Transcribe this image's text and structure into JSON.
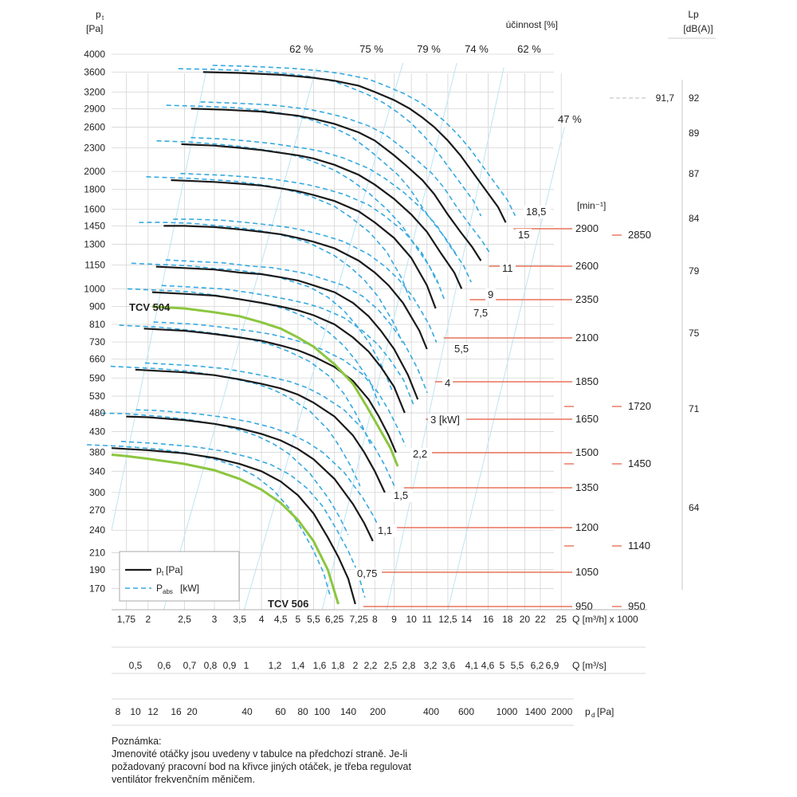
{
  "chart_data": {
    "type": "line",
    "y_axis": {
      "label": "p",
      "label_sub": "t",
      "unit": "[Pa]",
      "ticks": [
        4000,
        3600,
        3200,
        2900,
        2600,
        2300,
        2000,
        1800,
        1600,
        1450,
        1300,
        1150,
        1000,
        900,
        810,
        730,
        660,
        590,
        530,
        480,
        430,
        380,
        340,
        300,
        270,
        240,
        210,
        190,
        170
      ],
      "tick_labels": [
        "4000",
        "3600",
        "3200",
        "2900",
        "2600",
        "2300",
        "2000",
        "1800",
        "1600",
        "1450",
        "1300",
        "1150",
        "1000",
        "900",
        "810",
        "730",
        "660",
        "590",
        "530",
        "480",
        "430",
        "380",
        "340",
        "300",
        "270",
        "240",
        "210",
        "190",
        "170"
      ],
      "range": [
        150,
        4000
      ],
      "scale": "log"
    },
    "x_axis": {
      "label": "Q [m³/h] x 1000",
      "ticks": [
        1.75,
        2,
        2.5,
        3,
        3.5,
        4,
        4.5,
        5,
        5.5,
        6.25,
        7.25,
        8,
        9,
        10,
        11,
        12.5,
        14,
        16,
        18,
        20,
        22,
        25
      ],
      "tick_labels": [
        "1,75",
        "2",
        "2,5",
        "3",
        "3,5",
        "4",
        "4,5",
        "5",
        "5,5",
        "6,25",
        "7,25",
        "8",
        "9",
        "10",
        "11",
        "12,5",
        "14",
        "16",
        "18",
        "20",
        "22",
        "25"
      ],
      "range": [
        1.6,
        27
      ],
      "scale": "log"
    },
    "x_axis_2": {
      "label": "Q [m³/s]",
      "ticks": [
        0.5,
        0.6,
        0.7,
        0.8,
        0.9,
        1,
        1.2,
        1.4,
        1.6,
        1.8,
        2,
        2.2,
        2.5,
        2.8,
        3.2,
        3.6,
        4.1,
        4.6,
        5,
        5.5,
        6.2,
        6.9
      ],
      "tick_labels": [
        "0,5",
        "0,6",
        "0,7",
        "0,8",
        "0,9",
        "1",
        "1,2",
        "1,4",
        "1,6",
        "1,8",
        "2",
        "2,2",
        "2,5",
        "2,8",
        "3,2",
        "3,6",
        "4,1",
        "4,6",
        "5",
        "5,5",
        "6,2",
        "6,9"
      ]
    },
    "x_axis_3": {
      "label": "p",
      "label_sub": "d",
      "unit": "[Pa]",
      "ticks": [
        8,
        10,
        12,
        16,
        20,
        40,
        60,
        80,
        100,
        140,
        200,
        400,
        600,
        1000,
        1400,
        2000
      ],
      "tick_labels": [
        "8",
        "10",
        "12",
        "16",
        "20",
        "40",
        "60",
        "80",
        "100",
        "140",
        "200",
        "400",
        "600",
        "1000",
        "1400",
        "2000"
      ]
    },
    "efficiency": {
      "title": "účinnost [%]",
      "labels": [
        "62 %",
        "75 %",
        "79 %",
        "74 %",
        "62 %"
      ],
      "side_label": "47 %"
    },
    "rpm": {
      "unit": "[min⁻¹]",
      "values": [
        2900,
        2600,
        2350,
        2100,
        1850,
        1650,
        1500,
        1350,
        1200,
        1050,
        950
      ],
      "labels": [
        "2900",
        "2600",
        "2350",
        "2100",
        "1850",
        "1650",
        "1500",
        "1350",
        "1200",
        "1050",
        "950"
      ],
      "right_values": [
        2850,
        1720,
        1450,
        1140,
        950
      ],
      "right_labels": [
        "2850",
        "1720",
        "1450",
        "1140",
        "950"
      ]
    },
    "power": {
      "unit": "[kW]",
      "labels": [
        "18,5",
        "15",
        "11",
        "9",
        "7,5",
        "5,5",
        "4",
        "3 [kW]",
        "2,2",
        "1,5",
        "1,1",
        "0,75"
      ]
    },
    "lp": {
      "title": "Lp",
      "unit": "[dB(A)]",
      "marker": "91,7",
      "values": [
        "92",
        "89",
        "87",
        "84",
        "79",
        "75",
        "71",
        "64"
      ],
      "y_at": [
        3200,
        2650,
        2050,
        1560,
        1150,
        780,
        500,
        310
      ]
    },
    "series": [
      {
        "rpm": 2900,
        "x": [
          2.8,
          3.5,
          4.5,
          5.5,
          6.25,
          7.25,
          8,
          9,
          9.9,
          10.7,
          11.5,
          12.5,
          13.5,
          14.5,
          15.7,
          17,
          17.8
        ],
        "y": [
          3600,
          3580,
          3540,
          3480,
          3420,
          3320,
          3200,
          3050,
          2900,
          2750,
          2600,
          2400,
          2200,
          2000,
          1800,
          1620,
          1480
        ]
      },
      {
        "rpm": 2600,
        "x": [
          2.6,
          3.2,
          4,
          5,
          5.5,
          6.25,
          7.25,
          8,
          9,
          9.8,
          10.7,
          11.5,
          12.5,
          13.5,
          14.5,
          15.3
        ],
        "y": [
          2900,
          2880,
          2850,
          2780,
          2730,
          2650,
          2520,
          2400,
          2200,
          2050,
          1900,
          1750,
          1550,
          1400,
          1280,
          1180
        ]
      },
      {
        "rpm": 2350,
        "x": [
          2.45,
          3,
          3.5,
          4,
          5,
          5.5,
          6.25,
          7.25,
          8,
          9,
          10,
          11,
          12,
          13,
          13.6
        ],
        "y": [
          2350,
          2330,
          2300,
          2270,
          2200,
          2160,
          2080,
          1960,
          1850,
          1700,
          1550,
          1400,
          1230,
          1100,
          1000
        ]
      },
      {
        "rpm": 2100,
        "x": [
          2.3,
          3,
          3.5,
          4,
          4.5,
          5,
          5.5,
          6.25,
          7.25,
          8,
          9,
          10,
          11,
          11.6
        ],
        "y": [
          1900,
          1880,
          1860,
          1840,
          1810,
          1780,
          1740,
          1680,
          1580,
          1480,
          1350,
          1200,
          1020,
          890
        ]
      },
      {
        "rpm": 1850,
        "x": [
          2.2,
          2.5,
          3,
          3.5,
          4,
          4.5,
          5,
          5.5,
          6.25,
          7.25,
          8,
          8.7,
          9.5,
          10.5,
          11
        ],
        "y": [
          1450,
          1450,
          1440,
          1420,
          1400,
          1380,
          1350,
          1320,
          1270,
          1180,
          1100,
          1020,
          920,
          780,
          700
        ]
      },
      {
        "rpm": 1650,
        "x": [
          2.1,
          2.5,
          3,
          3.5,
          4,
          4.5,
          5,
          5.5,
          6.25,
          7,
          7.7,
          8.3,
          9,
          9.8,
          10.4
        ],
        "y": [
          1140,
          1130,
          1120,
          1100,
          1090,
          1070,
          1050,
          1020,
          980,
          920,
          850,
          780,
          700,
          600,
          520
        ]
      },
      {
        "rpm": 1500,
        "x": [
          2.05,
          2.5,
          3,
          3.5,
          4,
          4.5,
          5,
          5.5,
          6.25,
          7,
          7.7,
          8.3,
          9,
          9.6
        ],
        "y": [
          980,
          970,
          960,
          940,
          920,
          900,
          880,
          855,
          810,
          750,
          690,
          630,
          560,
          480
        ]
      },
      {
        "rpm": 1350,
        "x": [
          1.95,
          2.5,
          3,
          3.5,
          4,
          4.5,
          5,
          5.5,
          6.25,
          7,
          7.7,
          8.2,
          8.7,
          9.1
        ],
        "y": [
          790,
          780,
          765,
          750,
          735,
          715,
          695,
          670,
          630,
          580,
          520,
          470,
          420,
          380
        ]
      },
      {
        "rpm": 1200,
        "x": [
          1.85,
          2.5,
          3,
          3.5,
          4,
          4.5,
          5,
          5.5,
          6.25,
          7,
          7.5,
          8,
          8.5
        ],
        "y": [
          620,
          610,
          600,
          585,
          570,
          555,
          535,
          510,
          470,
          420,
          380,
          340,
          300
        ]
      },
      {
        "rpm": 1050,
        "x": [
          1.75,
          2,
          2.5,
          3,
          3.5,
          4,
          4.5,
          5,
          5.5,
          6.25,
          7,
          7.5,
          7.9
        ],
        "y": [
          470,
          468,
          460,
          450,
          438,
          424,
          408,
          388,
          365,
          325,
          280,
          250,
          225
        ]
      },
      {
        "rpm": 950,
        "x": [
          1.6,
          1.75,
          2,
          2.5,
          3,
          3.5,
          4,
          4.5,
          5,
          5.5,
          6,
          6.4,
          6.8,
          7.1
        ],
        "y": [
          390,
          388,
          385,
          378,
          368,
          355,
          340,
          320,
          295,
          265,
          230,
          205,
          180,
          155
        ]
      }
    ],
    "tcv_curves": [
      {
        "name": "TCV 504",
        "x": [
          2.05,
          2.5,
          3,
          3.5,
          4,
          4.5,
          5,
          5.5,
          6.25,
          7,
          7.6,
          8.2,
          8.8,
          9.2
        ],
        "y": [
          900,
          890,
          870,
          850,
          820,
          790,
          750,
          710,
          640,
          570,
          500,
          440,
          390,
          350
        ]
      },
      {
        "name": "TCV 506",
        "x": [
          1.6,
          1.75,
          2,
          2.5,
          3,
          3.5,
          4,
          4.5,
          5,
          5.5,
          6,
          6.4
        ],
        "y": [
          375,
          372,
          366,
          355,
          342,
          325,
          305,
          282,
          255,
          225,
          190,
          155
        ]
      }
    ],
    "legend": [
      {
        "label": "p",
        "sub": "t",
        "unit": "[Pa]",
        "style": "solid"
      },
      {
        "label": "P",
        "sub": "abs",
        "unit": "[kW]",
        "style": "dashed"
      }
    ],
    "colors": {
      "curve": "#1a1a1a",
      "power": "#35a9e0",
      "tcv": "#8cc63f",
      "rpm_line": "#e8735a",
      "grid": "#d4d4d4",
      "eff_line": "#bfe4f2"
    }
  },
  "note": {
    "heading": "Poznámka:",
    "lines": [
      "Jmenovité otáčky jsou uvedeny v tabulce na předchozí straně. Je-li",
      "požadovaný pracovní bod na křivce jiných otáček, je třeba regulovat",
      "ventilátor frekvenčním měničem."
    ]
  }
}
